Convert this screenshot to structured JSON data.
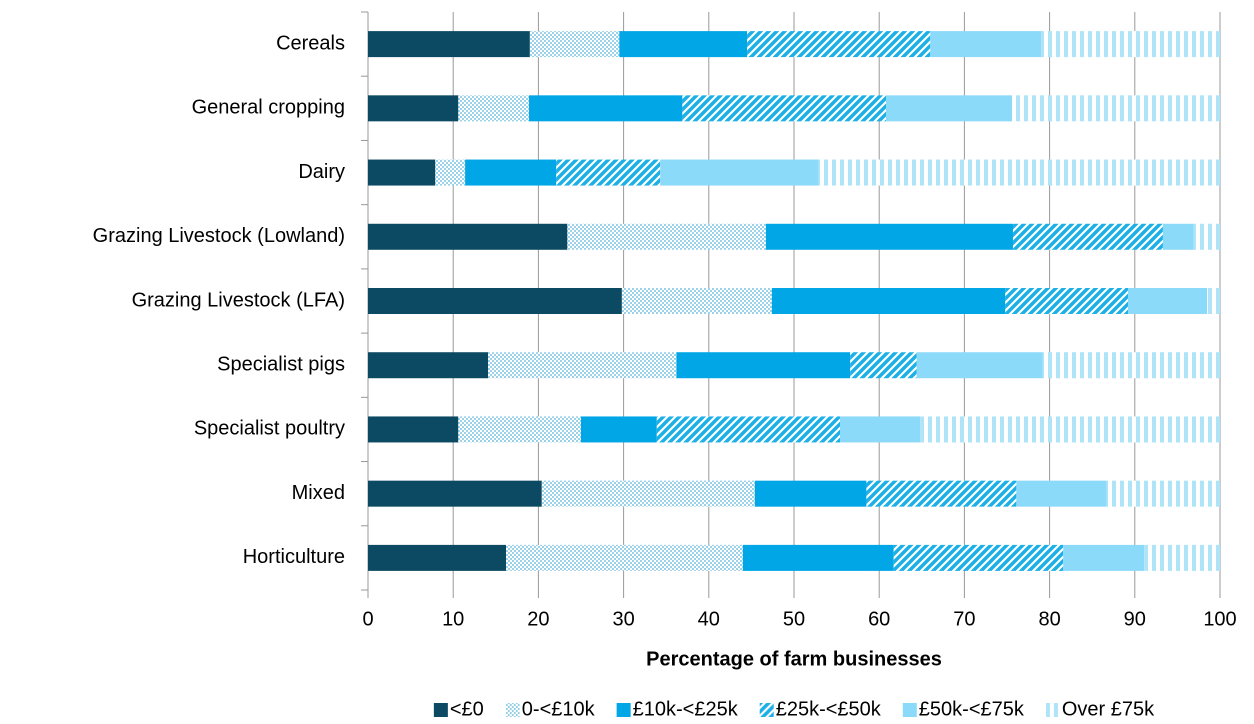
{
  "chart_data": {
    "type": "stacked-barh",
    "x_label": "Percentage of farm businesses",
    "categories": [
      "Cereals",
      "General cropping",
      "Dairy",
      "Grazing Livestock (Lowland)",
      "Grazing Livestock (LFA)",
      "Specialist pigs",
      "Specialist poultry",
      "Mixed",
      "Horticulture"
    ],
    "series": [
      {
        "name": "<£0",
        "color": "#0b4a62",
        "pattern": "solid",
        "values": [
          19,
          10.6,
          7.9,
          23.4,
          29.8,
          14.1,
          10.6,
          20.4,
          16.2
        ]
      },
      {
        "name": "0-<£10k",
        "color": "#7cc4e2",
        "pattern": "dots",
        "values": [
          10.5,
          8.3,
          3.5,
          23.3,
          17.6,
          22.1,
          14.4,
          25,
          27.8
        ]
      },
      {
        "name": "£10k-<£25k",
        "color": "#00a6e6",
        "pattern": "solid",
        "values": [
          15,
          18,
          10.7,
          29,
          27.4,
          20.4,
          8.9,
          13.1,
          17.7
        ]
      },
      {
        "name": "£25k-<£50k",
        "color": "#1cb0e6",
        "pattern": "hatch",
        "values": [
          21.5,
          23.9,
          12.2,
          17.6,
          14.4,
          7.8,
          21.5,
          17.6,
          19.9
        ]
      },
      {
        "name": "£50k-<£75k",
        "color": "#8cdafa",
        "pattern": "solid",
        "values": [
          13,
          14.8,
          18.6,
          3.6,
          9.3,
          14.8,
          9.4,
          10.6,
          9.5
        ]
      },
      {
        "name": "Over £75k",
        "color": "#aee3f8",
        "pattern": "vstripes",
        "values": [
          21,
          24.4,
          47.1,
          3.1,
          1.5,
          20.8,
          35.2,
          13.3,
          8.9
        ]
      }
    ],
    "xlim": [
      0,
      100
    ],
    "xticks": [
      0,
      10,
      20,
      30,
      40,
      50,
      60,
      70,
      80,
      90,
      100
    ],
    "grid": true,
    "legend": "bottom"
  }
}
